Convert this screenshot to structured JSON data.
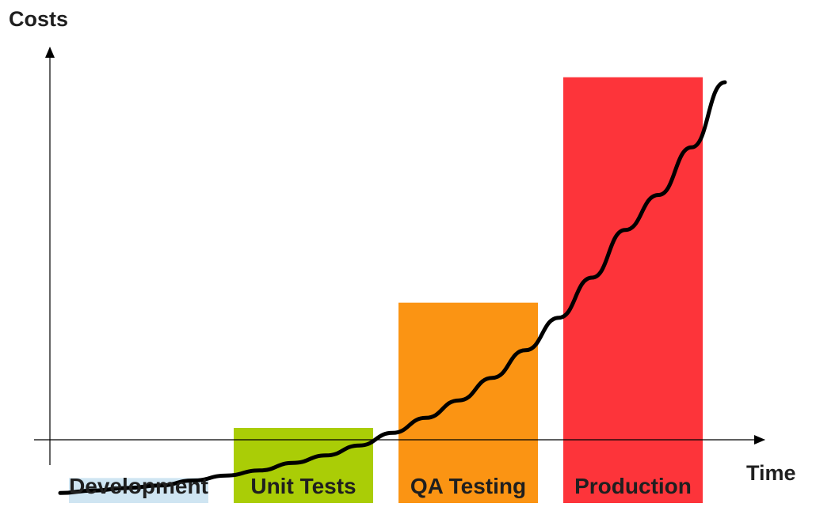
{
  "chart_data": {
    "type": "bar",
    "title": "",
    "xlabel": "Time",
    "ylabel": "Costs",
    "categories": [
      "Development",
      "Unit Tests",
      "QA Testing",
      "Production"
    ],
    "values": [
      1,
      3,
      8,
      17
    ],
    "ylim": [
      0,
      18
    ],
    "bar_colors": [
      "#cfe5f2",
      "#aacd06",
      "#fb9413",
      "#fd343a"
    ],
    "trend_curve": {
      "type": "exponential",
      "x": [
        0,
        1,
        2,
        3,
        4,
        5,
        6,
        7,
        8,
        9,
        10,
        11,
        12,
        13,
        14,
        15,
        16,
        17,
        18,
        19,
        20
      ],
      "y": [
        0.4,
        0.5,
        0.6,
        0.7,
        0.9,
        1.1,
        1.3,
        1.6,
        1.9,
        2.3,
        2.8,
        3.4,
        4.1,
        5.0,
        6.1,
        7.4,
        9.0,
        10.9,
        12.3,
        14.2,
        16.8
      ],
      "color": "#000000"
    },
    "grid": false,
    "legend": "none"
  }
}
